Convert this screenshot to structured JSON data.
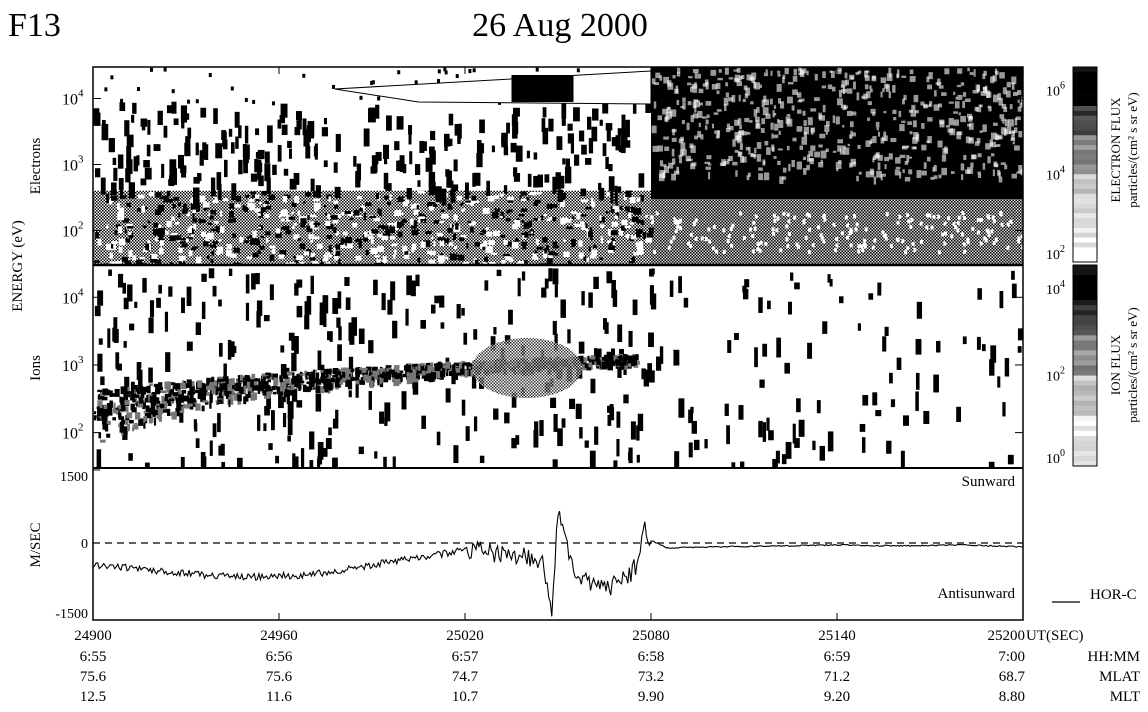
{
  "header": {
    "satellite": "F13",
    "date": "26 Aug 2000"
  },
  "colors": {
    "ink": "#000000",
    "paper": "#ffffff",
    "mid_gray": "#8c8c8c"
  },
  "chart_data": [
    {
      "type": "heatmap",
      "panel": "Electrons",
      "ylabel": "Electrons",
      "shared_ylabel": "ENERGY (eV)",
      "y_scale": "log",
      "y_ticks": [
        {
          "value": 10000,
          "base": "10",
          "exp": "4"
        },
        {
          "value": 1000,
          "base": "10",
          "exp": "3"
        },
        {
          "value": 100,
          "base": "10",
          "exp": "2"
        }
      ],
      "ylim": [
        30,
        30000
      ],
      "xlim": [
        24900,
        25200
      ],
      "colorbar": {
        "label_line1": "ELECTRON FLUX",
        "label_line2": "particles/(cm² s sr eV)",
        "ticks": [
          {
            "base": "10",
            "exp": "6"
          },
          {
            "base": "10",
            "exp": "4"
          },
          {
            "base": "10",
            "exp": "2"
          }
        ]
      }
    },
    {
      "type": "heatmap",
      "panel": "Ions",
      "ylabel": "Ions",
      "y_scale": "log",
      "y_ticks": [
        {
          "value": 10000,
          "base": "10",
          "exp": "4"
        },
        {
          "value": 1000,
          "base": "10",
          "exp": "3"
        },
        {
          "value": 100,
          "base": "10",
          "exp": "2"
        }
      ],
      "ylim": [
        30,
        30000
      ],
      "xlim": [
        24900,
        25200
      ],
      "colorbar": {
        "label_line1": "ION FLUX",
        "label_line2": "particles/(cm² s sr eV)",
        "ticks": [
          {
            "base": "10",
            "exp": "4"
          },
          {
            "base": "10",
            "exp": "2"
          },
          {
            "base": "10",
            "exp": "0"
          }
        ]
      }
    },
    {
      "type": "line",
      "panel": "Drift",
      "ylabel": "M/SEC",
      "ylim": [
        -1500,
        1500
      ],
      "y_ticks": [
        "1500",
        "0",
        "-1500"
      ],
      "xlim": [
        24900,
        25200
      ],
      "annotations": {
        "top": "Sunward",
        "bottom": "Antisunward"
      },
      "legend": {
        "label": "HOR-C",
        "position": "bottom-right"
      },
      "series": [
        {
          "name": "HOR-C",
          "x": [
            24900,
            24910,
            24920,
            24930,
            24940,
            24950,
            24960,
            24970,
            24980,
            24990,
            25000,
            25010,
            25020,
            25030,
            25040,
            25045,
            25048,
            25050,
            25055,
            25060,
            25065,
            25070,
            25075,
            25078,
            25080,
            25085,
            25100,
            25120,
            25140,
            25160,
            25180,
            25190,
            25200
          ],
          "values": [
            -450,
            -500,
            -560,
            -620,
            -680,
            -700,
            -680,
            -650,
            -560,
            -450,
            -350,
            -250,
            -150,
            -200,
            -300,
            -400,
            -1500,
            700,
            -600,
            -800,
            -900,
            -850,
            -500,
            300,
            50,
            -100,
            -80,
            -60,
            -40,
            -60,
            -40,
            -60,
            -80
          ]
        }
      ]
    }
  ],
  "x_axis": {
    "row_labels": [
      "UT(SEC)",
      "HH:MM",
      "MLAT",
      "MLT"
    ],
    "ut": [
      "24900",
      "24960",
      "25020",
      "25080",
      "25140",
      "25200"
    ],
    "hhmm": [
      "6:55",
      "6:56",
      "6:57",
      "6:58",
      "6:59",
      "7:00"
    ],
    "mlat": [
      "75.6",
      "75.6",
      "74.7",
      "73.2",
      "71.2",
      "68.7"
    ],
    "mlt": [
      "12.5",
      "11.6",
      "10.7",
      "9.90",
      "9.20",
      "8.80"
    ]
  }
}
